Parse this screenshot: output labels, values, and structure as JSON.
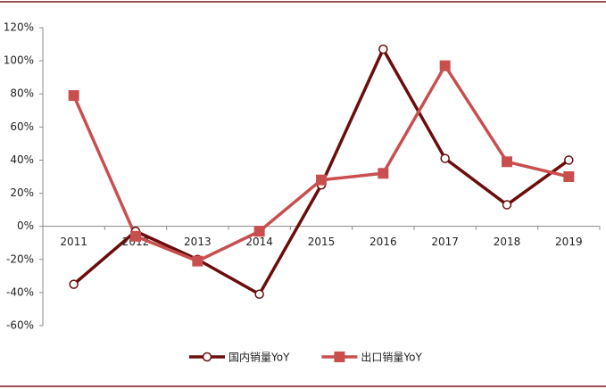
{
  "chart_data": {
    "type": "line",
    "categories": [
      "2011",
      "2012",
      "2013",
      "2014",
      "2015",
      "2016",
      "2017",
      "2018",
      "2019"
    ],
    "series": [
      {
        "name": "国内销量YoY",
        "color": "#6b0d0d",
        "marker": "circle",
        "values": [
          -35,
          -3,
          -20,
          -41,
          25,
          107,
          41,
          13,
          40
        ]
      },
      {
        "name": "出口销量YoY",
        "color": "#c94f4f",
        "marker": "square",
        "values": [
          79,
          -6,
          -21,
          -3,
          28,
          32,
          97,
          39,
          30
        ]
      }
    ],
    "ylim": [
      -60,
      120
    ],
    "yticks": [
      {
        "value": -60,
        "label": "-60%"
      },
      {
        "value": -40,
        "label": "-40%"
      },
      {
        "value": -20,
        "label": "-20%"
      },
      {
        "value": 0,
        "label": "0%"
      },
      {
        "value": 20,
        "label": "20%"
      },
      {
        "value": 40,
        "label": "40%"
      },
      {
        "value": 60,
        "label": "60%"
      },
      {
        "value": 80,
        "label": "80%"
      },
      {
        "value": 100,
        "label": "100%"
      },
      {
        "value": 120,
        "label": "120%"
      }
    ],
    "legend": "bottom"
  }
}
